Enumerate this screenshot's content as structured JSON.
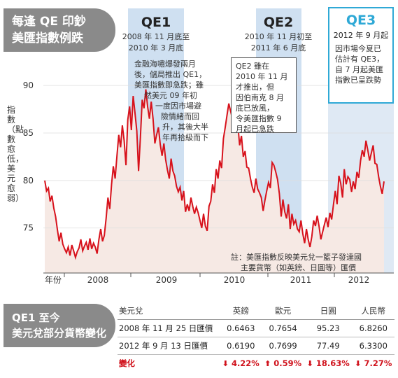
{
  "title": {
    "line1": "每逢 QE 印鈔",
    "line2": "美匯指數例跌"
  },
  "ylabel": "指數（點數愈低，美元愈弱）",
  "chart_data": {
    "type": "line",
    "yticks": [
      75,
      80,
      85,
      90
    ],
    "ylim": [
      71,
      92
    ],
    "x_prefix": "年份",
    "x_year_labels": [
      "2008",
      "2009",
      "2010",
      "2011",
      "2012"
    ],
    "series": [
      {
        "values": [
          80.0,
          78.9,
          79.2,
          77.8,
          78.4,
          77.1,
          76.2,
          74.8,
          73.6,
          74.5,
          73.3,
          72.8,
          72.4,
          73.0,
          72.1,
          73.2,
          72.6,
          71.9,
          72.5,
          72.9,
          73.8,
          72.6,
          73.1,
          73.5,
          72.7,
          73.9,
          72.8,
          73.4,
          73.0,
          72.3,
          73.8,
          74.9,
          73.6,
          74.2,
          76.0,
          78.2,
          77.0,
          79.6,
          81.5,
          80.2,
          82.6,
          84.8,
          83.5,
          85.8,
          84.2,
          81.6,
          86.4,
          87.8,
          85.3,
          88.9,
          87.1,
          85.2,
          81.0,
          84.5,
          88.5,
          87.6,
          89.6,
          87.8,
          86.5,
          88.3,
          86.5,
          83.9,
          84.8,
          85.6,
          83.8,
          82.6,
          83.9,
          82.2,
          81.1,
          80.2,
          82.3,
          81.0,
          80.5,
          79.4,
          78.8,
          79.3,
          77.9,
          78.9,
          76.7,
          77.5,
          76.8,
          78.2,
          77.3,
          76.5,
          77.2,
          76.6,
          75.8,
          75.0,
          76.5,
          75.2,
          74.7,
          77.3,
          77.8,
          79.6,
          78.7,
          81.2,
          80.2,
          82.1,
          81.3,
          84.4,
          85.6,
          86.9,
          88.1,
          87.3,
          86.5,
          85.6,
          87.1,
          85.9,
          83.7,
          84.7,
          82.5,
          83.1,
          81.4,
          81.3,
          80.2,
          79.3,
          78.7,
          80.2,
          79.1,
          78.7,
          78.2,
          76.8,
          77.9,
          78.9,
          79.8,
          79.2,
          81.9,
          81.6,
          80.9,
          80.1,
          78.6,
          76.2,
          78.0,
          76.7,
          76.0,
          77.5,
          74.9,
          76.5,
          75.4,
          75.8,
          74.9,
          74.6,
          75.8,
          74.4,
          73.4,
          74.9,
          73.8,
          73.0,
          74.1,
          75.8,
          75.2,
          76.3,
          75.2,
          73.8,
          74.6,
          75.4,
          76.1,
          75.1,
          76.6,
          75.9,
          77.5,
          78.9,
          77.5,
          80.5,
          79.7,
          78.2,
          81.2,
          79.6,
          80.4,
          80.1,
          78.8,
          79.9,
          79.1,
          80.9,
          80.3,
          82.1,
          83.2,
          82.5,
          84.2,
          83.2,
          82.1,
          82.9,
          83.7,
          81.8,
          81.7,
          80.4,
          79.4,
          78.6,
          79.9
        ]
      }
    ]
  },
  "qe1": {
    "heading": "QE1",
    "date_line1": "2008 年 11 月底至",
    "date_line2": "2010 年 3 月底",
    "text": [
      "金融海嘯爆發兩月",
      "後，儲局推出 QE1，",
      "美匯指數即急跌；雖",
      "然美元 09 年初",
      "一度因市場避",
      "險情緒而回",
      "升，其後大半",
      "年再拾級而下"
    ]
  },
  "qe2": {
    "heading": "QE2",
    "date_line1": "2010 年 11 月初至",
    "date_line2": "2011 年 6 月底",
    "text": [
      "QE2 雖在",
      "2010 年 11 月",
      "才推出，但",
      "因伯南克 8 月",
      "底已放風，",
      "令美匯指數 9",
      "月起已急跌"
    ]
  },
  "qe3": {
    "heading": "QE3",
    "date_line": "2012 年 9 月起",
    "text": [
      "因市場今夏已",
      "估計有 QE3，",
      "自 7 月起美匯",
      "指數已呈跌勢"
    ]
  },
  "note": {
    "line1": "註：美匯指數反映美元兌一籃子發達國",
    "line2": "主要貨幣（如英鎊、日圓等）匯價"
  },
  "bottom_title": {
    "line1": "QE1 至今",
    "line2": "美元兌部分貨幣變化"
  },
  "table": {
    "headers": [
      "美元兌",
      "英鎊",
      "歐元",
      "日圓",
      "人民幣"
    ],
    "rows": [
      [
        "2008 年 11 月 25 日匯價",
        "0.6463",
        "0.7654",
        "95.23",
        "6.8260"
      ],
      [
        "2012 年 9 月 13 日匯價",
        "0.6190",
        "0.7699",
        "77.49",
        "6.3300"
      ]
    ],
    "change_label": "變化",
    "changes": [
      {
        "dir": "down",
        "value": "4.22%"
      },
      {
        "dir": "up",
        "value": "0.59%"
      },
      {
        "dir": "down",
        "value": "18.63%"
      },
      {
        "dir": "down",
        "value": "7.27%"
      }
    ]
  },
  "colors": {
    "line": "#d7121c",
    "qe_band": "#cfe0f1",
    "qe3_accent": "#2fa9d6",
    "title_bg": "#8a8a8a"
  }
}
